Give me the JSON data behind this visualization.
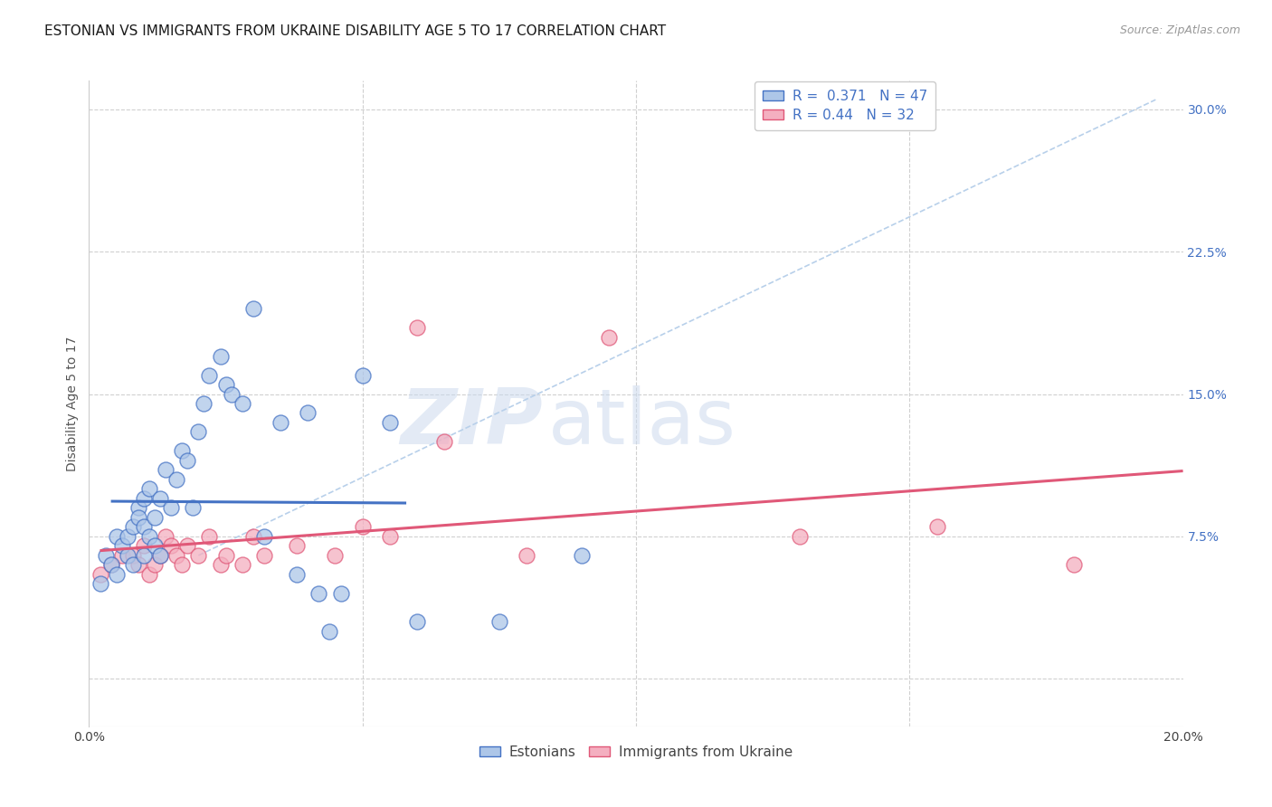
{
  "title": "ESTONIAN VS IMMIGRANTS FROM UKRAINE DISABILITY AGE 5 TO 17 CORRELATION CHART",
  "source": "Source: ZipAtlas.com",
  "ylabel_label": "Disability Age 5 to 17",
  "x_min": 0.0,
  "x_max": 0.2,
  "y_min": -0.025,
  "y_max": 0.315,
  "y_tick_labels_right": [
    "",
    "7.5%",
    "15.0%",
    "22.5%",
    "30.0%"
  ],
  "y_tick_positions_right": [
    0.0,
    0.075,
    0.15,
    0.225,
    0.3
  ],
  "blue_R": 0.371,
  "blue_N": 47,
  "pink_R": 0.44,
  "pink_N": 32,
  "blue_color": "#adc6e8",
  "pink_color": "#f4afc0",
  "blue_line_color": "#4472c4",
  "pink_line_color": "#e05878",
  "diag_color": "#b8d0ea",
  "background_color": "#ffffff",
  "grid_color": "#d0d0d0",
  "blue_scatter_x": [
    0.002,
    0.003,
    0.004,
    0.005,
    0.005,
    0.006,
    0.007,
    0.007,
    0.008,
    0.008,
    0.009,
    0.009,
    0.01,
    0.01,
    0.01,
    0.011,
    0.011,
    0.012,
    0.012,
    0.013,
    0.013,
    0.014,
    0.015,
    0.016,
    0.017,
    0.018,
    0.019,
    0.02,
    0.021,
    0.022,
    0.024,
    0.025,
    0.026,
    0.028,
    0.03,
    0.032,
    0.035,
    0.038,
    0.04,
    0.042,
    0.044,
    0.046,
    0.05,
    0.055,
    0.06,
    0.075,
    0.09
  ],
  "blue_scatter_y": [
    0.05,
    0.065,
    0.06,
    0.075,
    0.055,
    0.07,
    0.075,
    0.065,
    0.08,
    0.06,
    0.09,
    0.085,
    0.095,
    0.08,
    0.065,
    0.1,
    0.075,
    0.085,
    0.07,
    0.095,
    0.065,
    0.11,
    0.09,
    0.105,
    0.12,
    0.115,
    0.09,
    0.13,
    0.145,
    0.16,
    0.17,
    0.155,
    0.15,
    0.145,
    0.195,
    0.075,
    0.135,
    0.055,
    0.14,
    0.045,
    0.025,
    0.045,
    0.16,
    0.135,
    0.03,
    0.03,
    0.065
  ],
  "pink_scatter_x": [
    0.002,
    0.004,
    0.006,
    0.008,
    0.009,
    0.01,
    0.011,
    0.012,
    0.013,
    0.014,
    0.015,
    0.016,
    0.017,
    0.018,
    0.02,
    0.022,
    0.024,
    0.025,
    0.028,
    0.03,
    0.032,
    0.038,
    0.045,
    0.05,
    0.055,
    0.06,
    0.065,
    0.08,
    0.095,
    0.13,
    0.155,
    0.18
  ],
  "pink_scatter_y": [
    0.055,
    0.06,
    0.065,
    0.065,
    0.06,
    0.07,
    0.055,
    0.06,
    0.065,
    0.075,
    0.07,
    0.065,
    0.06,
    0.07,
    0.065,
    0.075,
    0.06,
    0.065,
    0.06,
    0.075,
    0.065,
    0.07,
    0.065,
    0.08,
    0.075,
    0.185,
    0.125,
    0.065,
    0.18,
    0.075,
    0.08,
    0.06
  ],
  "title_fontsize": 11,
  "axis_label_fontsize": 10,
  "tick_fontsize": 10,
  "legend_fontsize": 11
}
